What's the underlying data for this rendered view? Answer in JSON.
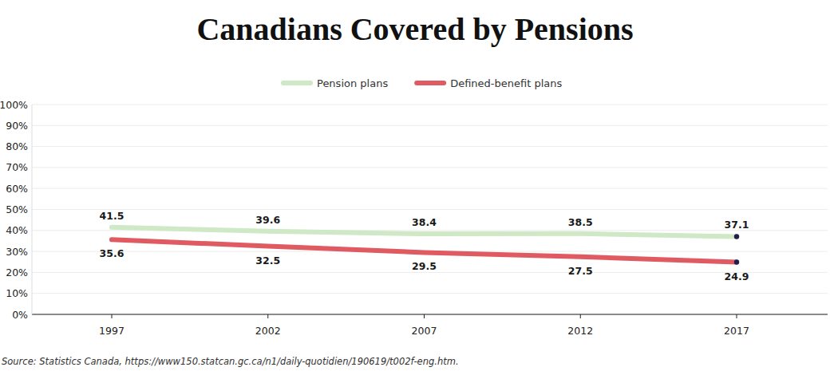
{
  "chart_data": {
    "type": "line",
    "title": "Canadians Covered by Pensions",
    "source": "Source: Statistics Canada, https://www150.statcan.gc.ca/n1/daily-quotidien/190619/t002f-eng.htm.",
    "categories": [
      "1997",
      "2002",
      "2007",
      "2012",
      "2017"
    ],
    "series": [
      {
        "name": "Pension plans",
        "color": "#cfe8c6",
        "values": [
          41.5,
          39.6,
          38.4,
          38.5,
          37.1
        ]
      },
      {
        "name": "Defined-benefit plans",
        "color": "#e05a62",
        "values": [
          35.6,
          32.5,
          29.5,
          27.5,
          24.9
        ]
      }
    ],
    "ylim": [
      0,
      100
    ],
    "yticks": [
      {
        "value": 0,
        "label": "0%"
      },
      {
        "value": 10,
        "label": "10%"
      },
      {
        "value": 20,
        "label": "20%"
      },
      {
        "value": 30,
        "label": "30%"
      },
      {
        "value": 40,
        "label": "40%"
      },
      {
        "value": 50,
        "label": "50%"
      },
      {
        "value": 60,
        "label": "60%"
      },
      {
        "value": 70,
        "label": "70%"
      },
      {
        "value": 80,
        "label": "80%"
      },
      {
        "value": 90,
        "label": "90%"
      },
      {
        "value": 100,
        "label": "100%"
      }
    ],
    "grid": true,
    "legend": "top",
    "data_labels": true
  }
}
